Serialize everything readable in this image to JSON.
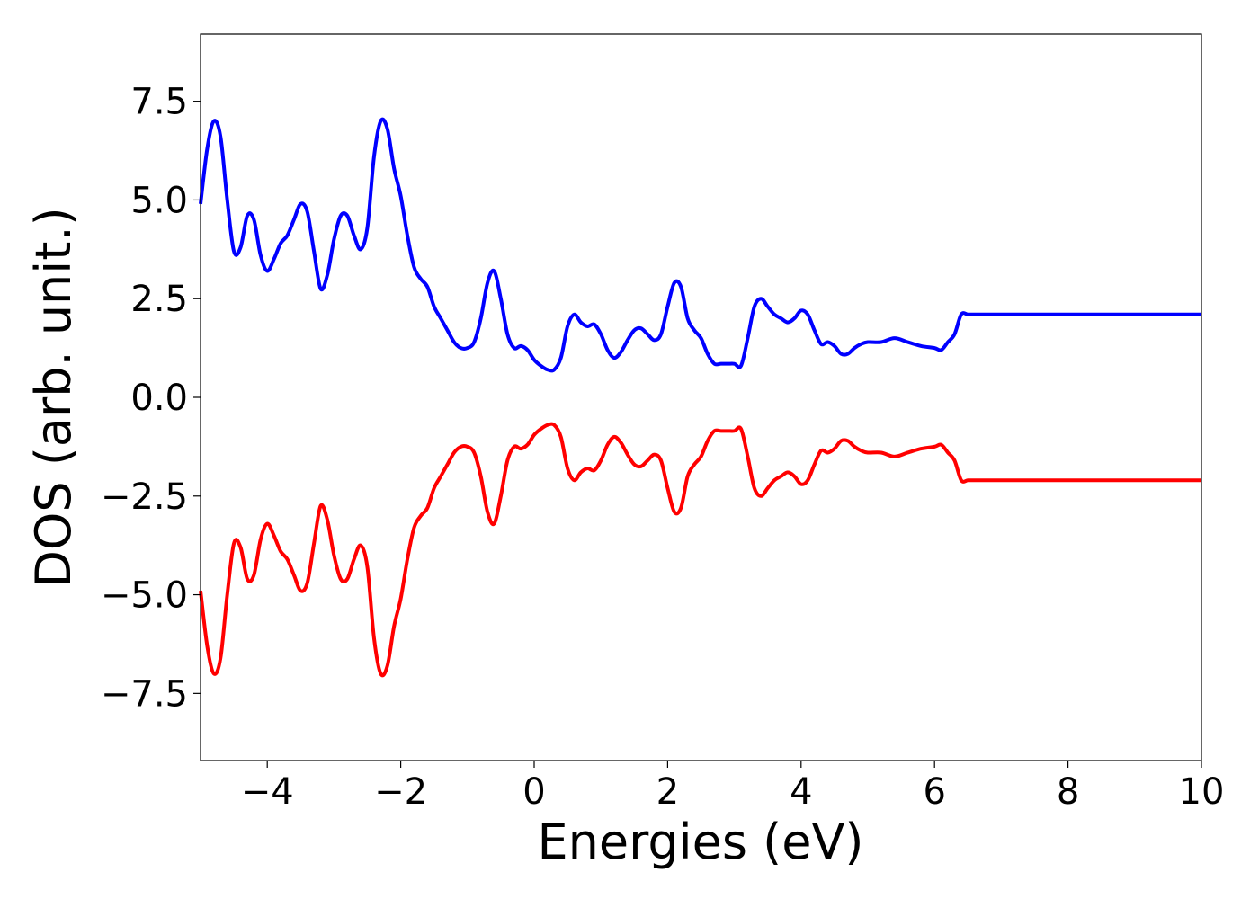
{
  "chart_data": {
    "type": "line",
    "title": "",
    "xlabel": "Energies (eV)",
    "ylabel": "DOS (arb. unit.)",
    "xlim": [
      -5,
      10
    ],
    "ylim": [
      -9.2,
      9.2
    ],
    "grid": false,
    "xticks": [
      -4,
      -2,
      0,
      2,
      4,
      6,
      8,
      10
    ],
    "xtick_labels": [
      "−4",
      "−2",
      "0",
      "2",
      "4",
      "6",
      "8",
      "10"
    ],
    "yticks": [
      7.5,
      5.0,
      2.5,
      0.0,
      -2.5,
      -5.0,
      -7.5
    ],
    "ytick_labels": [
      "7.5",
      "5.0",
      "2.5",
      "0.0",
      "−2.5",
      "−5.0",
      "−7.5"
    ],
    "series": [
      {
        "color": "#0000ff",
        "x": [
          -5.0,
          -4.9,
          -4.8,
          -4.7,
          -4.6,
          -4.5,
          -4.4,
          -4.3,
          -4.2,
          -4.1,
          -4.0,
          -3.9,
          -3.8,
          -3.7,
          -3.6,
          -3.5,
          -3.4,
          -3.3,
          -3.2,
          -3.1,
          -3.0,
          -2.9,
          -2.8,
          -2.7,
          -2.6,
          -2.5,
          -2.4,
          -2.3,
          -2.2,
          -2.1,
          -2.0,
          -1.9,
          -1.8,
          -1.7,
          -1.6,
          -1.5,
          -1.4,
          -1.3,
          -1.2,
          -1.1,
          -1.0,
          -0.9,
          -0.8,
          -0.7,
          -0.6,
          -0.5,
          -0.4,
          -0.3,
          -0.2,
          -0.1,
          0.0,
          0.1,
          0.2,
          0.3,
          0.4,
          0.5,
          0.6,
          0.7,
          0.8,
          0.9,
          1.0,
          1.1,
          1.2,
          1.3,
          1.4,
          1.5,
          1.6,
          1.7,
          1.8,
          1.9,
          2.0,
          2.1,
          2.2,
          2.3,
          2.4,
          2.5,
          2.6,
          2.7,
          2.8,
          2.9,
          3.0,
          3.1,
          3.2,
          3.3,
          3.4,
          3.5,
          3.6,
          3.7,
          3.8,
          3.9,
          4.0,
          4.1,
          4.2,
          4.3,
          4.4,
          4.5,
          4.6,
          4.7,
          4.8,
          4.9,
          5.0,
          5.2,
          5.4,
          5.6,
          5.8,
          6.0,
          6.1,
          6.2,
          6.3,
          6.4,
          6.5,
          6.6,
          6.7,
          6.8,
          6.9,
          7.0,
          7.1,
          7.2,
          7.3,
          7.4,
          7.5,
          7.6,
          7.7,
          7.8,
          7.9,
          8.0,
          8.2,
          8.4,
          8.6,
          8.8,
          9.0,
          9.2,
          9.4,
          9.6,
          9.8,
          10.0
        ],
        "y": [
          4.9,
          6.3,
          7.0,
          6.6,
          5.0,
          3.7,
          3.8,
          4.6,
          4.5,
          3.6,
          3.2,
          3.5,
          3.9,
          4.1,
          4.5,
          4.9,
          4.7,
          3.7,
          2.75,
          3.1,
          4.0,
          4.6,
          4.6,
          4.1,
          3.75,
          4.3,
          6.1,
          7.0,
          6.8,
          5.8,
          5.1,
          4.1,
          3.3,
          3.0,
          2.8,
          2.3,
          2.0,
          1.7,
          1.4,
          1.25,
          1.25,
          1.4,
          2.0,
          2.9,
          3.2,
          2.5,
          1.6,
          1.25,
          1.3,
          1.2,
          0.95,
          0.8,
          0.7,
          0.7,
          1.0,
          1.8,
          2.1,
          1.9,
          1.8,
          1.85,
          1.6,
          1.2,
          1.0,
          1.15,
          1.45,
          1.7,
          1.75,
          1.6,
          1.45,
          1.6,
          2.3,
          2.9,
          2.8,
          2.0,
          1.7,
          1.5,
          1.1,
          0.85,
          0.85,
          0.85,
          0.85,
          0.8,
          1.5,
          2.3,
          2.5,
          2.3,
          2.1,
          2.0,
          1.9,
          2.0,
          2.2,
          2.1,
          1.7,
          1.35,
          1.4,
          1.3,
          1.1,
          1.1,
          1.25,
          1.35,
          1.4,
          1.4,
          1.5,
          1.4,
          1.3,
          1.25,
          1.2,
          1.4,
          1.6,
          2.1,
          2.1,
          2.1,
          2.1,
          2.1,
          2.1,
          2.1,
          2.1,
          2.1,
          2.1,
          2.1,
          2.1,
          2.1,
          2.1,
          2.1,
          2.1,
          2.1,
          2.1,
          2.1,
          2.1,
          2.1,
          2.1,
          2.1,
          2.1,
          2.1,
          2.1,
          2.1
        ]
      },
      {
        "color": "#ff0000",
        "x": [
          -5.0,
          -4.9,
          -4.8,
          -4.7,
          -4.6,
          -4.5,
          -4.4,
          -4.3,
          -4.2,
          -4.1,
          -4.0,
          -3.9,
          -3.8,
          -3.7,
          -3.6,
          -3.5,
          -3.4,
          -3.3,
          -3.2,
          -3.1,
          -3.0,
          -2.9,
          -2.8,
          -2.7,
          -2.6,
          -2.5,
          -2.4,
          -2.3,
          -2.2,
          -2.1,
          -2.0,
          -1.9,
          -1.8,
          -1.7,
          -1.6,
          -1.5,
          -1.4,
          -1.3,
          -1.2,
          -1.1,
          -1.0,
          -0.9,
          -0.8,
          -0.7,
          -0.6,
          -0.5,
          -0.4,
          -0.3,
          -0.2,
          -0.1,
          0.0,
          0.1,
          0.2,
          0.3,
          0.4,
          0.5,
          0.6,
          0.7,
          0.8,
          0.9,
          1.0,
          1.1,
          1.2,
          1.3,
          1.4,
          1.5,
          1.6,
          1.7,
          1.8,
          1.9,
          2.0,
          2.1,
          2.2,
          2.3,
          2.4,
          2.5,
          2.6,
          2.7,
          2.8,
          2.9,
          3.0,
          3.1,
          3.2,
          3.3,
          3.4,
          3.5,
          3.6,
          3.7,
          3.8,
          3.9,
          4.0,
          4.1,
          4.2,
          4.3,
          4.4,
          4.5,
          4.6,
          4.7,
          4.8,
          4.9,
          5.0,
          5.2,
          5.4,
          5.6,
          5.8,
          6.0,
          6.1,
          6.2,
          6.3,
          6.4,
          6.5,
          6.6,
          6.7,
          6.8,
          6.9,
          7.0,
          7.1,
          7.2,
          7.3,
          7.4,
          7.5,
          7.6,
          7.7,
          7.8,
          7.9,
          8.0,
          8.2,
          8.4,
          8.6,
          8.8,
          9.0,
          9.2,
          9.4,
          9.6,
          9.8,
          10.0
        ],
        "y": [
          -4.9,
          -6.3,
          -7.0,
          -6.6,
          -5.0,
          -3.7,
          -3.8,
          -4.6,
          -4.5,
          -3.6,
          -3.2,
          -3.5,
          -3.9,
          -4.1,
          -4.5,
          -4.9,
          -4.7,
          -3.7,
          -2.75,
          -3.1,
          -4.0,
          -4.6,
          -4.6,
          -4.1,
          -3.75,
          -4.3,
          -6.1,
          -7.0,
          -6.8,
          -5.8,
          -5.1,
          -4.1,
          -3.3,
          -3.0,
          -2.8,
          -2.3,
          -2.0,
          -1.7,
          -1.4,
          -1.25,
          -1.25,
          -1.4,
          -2.0,
          -2.9,
          -3.2,
          -2.5,
          -1.6,
          -1.25,
          -1.3,
          -1.2,
          -0.95,
          -0.8,
          -0.7,
          -0.7,
          -1.0,
          -1.8,
          -2.1,
          -1.9,
          -1.8,
          -1.85,
          -1.6,
          -1.2,
          -1.0,
          -1.15,
          -1.45,
          -1.7,
          -1.75,
          -1.6,
          -1.45,
          -1.6,
          -2.3,
          -2.9,
          -2.8,
          -2.0,
          -1.7,
          -1.5,
          -1.1,
          -0.85,
          -0.85,
          -0.85,
          -0.85,
          -0.8,
          -1.5,
          -2.3,
          -2.5,
          -2.3,
          -2.1,
          -2.0,
          -1.9,
          -2.0,
          -2.2,
          -2.1,
          -1.7,
          -1.35,
          -1.4,
          -1.3,
          -1.1,
          -1.1,
          -1.25,
          -1.35,
          -1.4,
          -1.4,
          -1.5,
          -1.4,
          -1.3,
          -1.25,
          -1.2,
          -1.4,
          -1.6,
          -2.1,
          -2.1,
          -2.1,
          -2.1,
          -2.1,
          -2.1,
          -2.1,
          -2.1,
          -2.1,
          -2.1,
          -2.1,
          -2.1,
          -2.1,
          -2.1,
          -2.1,
          -2.1,
          -2.1,
          -2.1,
          -2.1,
          -2.1,
          -2.1,
          -2.1,
          -2.1,
          -2.1,
          -2.1,
          -2.1,
          -2.1
        ]
      }
    ]
  }
}
